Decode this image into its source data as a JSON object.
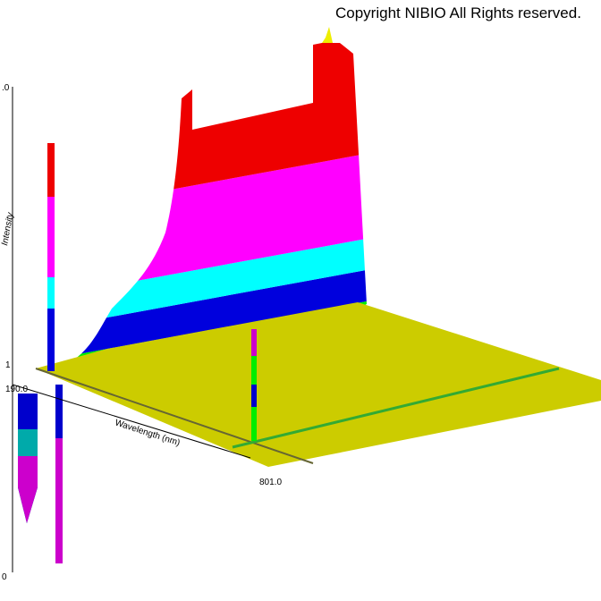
{
  "copyright": "Copyright NIBIO All Rights reserved.",
  "axes": {
    "y_label": "Intensity",
    "x_label": "Wavelength (nm)",
    "x_start": "190.0",
    "x_end": "801.0",
    "y_top": ".0",
    "y_mid": "1",
    "y_bottom": "0"
  }
}
